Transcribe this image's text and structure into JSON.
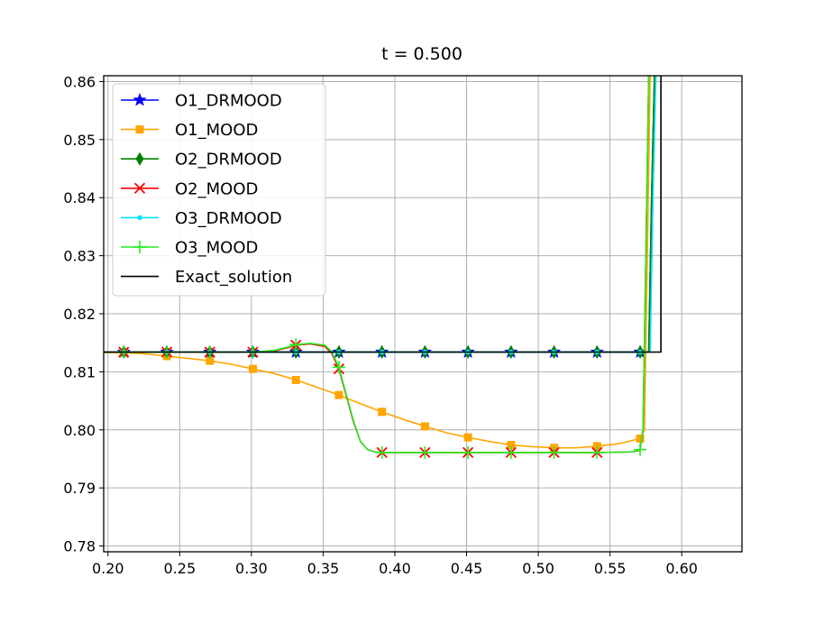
{
  "chart_data": {
    "type": "line",
    "title": "t = 0.500",
    "xlabel": "",
    "ylabel": "",
    "xlim": [
      0.197,
      0.642
    ],
    "ylim": [
      0.779,
      0.861
    ],
    "xticks": [
      0.2,
      0.25,
      0.3,
      0.35,
      0.4,
      0.45,
      0.5,
      0.55,
      0.6
    ],
    "xtick_labels": [
      "0.20",
      "0.25",
      "0.30",
      "0.35",
      "0.40",
      "0.45",
      "0.50",
      "0.55",
      "0.60"
    ],
    "yticks": [
      0.78,
      0.79,
      0.8,
      0.81,
      0.82,
      0.83,
      0.84,
      0.85,
      0.86
    ],
    "ytick_labels": [
      "0.78",
      "0.79",
      "0.80",
      "0.81",
      "0.82",
      "0.83",
      "0.84",
      "0.85",
      "0.86"
    ],
    "grid": true,
    "legend_position": "upper-left",
    "series": [
      {
        "name": "O1_DRMOOD",
        "color": "#0000ff",
        "marker": "star",
        "x": [
          0.197,
          0.211,
          0.241,
          0.271,
          0.301,
          0.331,
          0.361,
          0.391,
          0.421,
          0.451,
          0.481,
          0.511,
          0.541,
          0.571,
          0.577,
          0.579,
          0.581,
          0.583
        ],
        "y": [
          0.8134,
          0.8134,
          0.8134,
          0.8134,
          0.8134,
          0.8134,
          0.8134,
          0.8134,
          0.8134,
          0.8134,
          0.8134,
          0.8134,
          0.8134,
          0.8134,
          0.8134,
          0.84,
          0.861,
          0.861
        ],
        "markers_x": [
          0.211,
          0.241,
          0.271,
          0.301,
          0.331,
          0.361,
          0.391,
          0.421,
          0.451,
          0.481,
          0.511,
          0.541,
          0.571
        ],
        "markers_y": [
          0.8134,
          0.8134,
          0.8134,
          0.8134,
          0.8134,
          0.8134,
          0.8134,
          0.8134,
          0.8134,
          0.8134,
          0.8134,
          0.8134,
          0.8134
        ]
      },
      {
        "name": "O1_MOOD",
        "color": "#ffa500",
        "marker": "square",
        "x": [
          0.197,
          0.211,
          0.226,
          0.241,
          0.256,
          0.271,
          0.286,
          0.301,
          0.316,
          0.331,
          0.346,
          0.361,
          0.376,
          0.391,
          0.406,
          0.421,
          0.436,
          0.451,
          0.466,
          0.481,
          0.496,
          0.511,
          0.526,
          0.541,
          0.556,
          0.571,
          0.574,
          0.576,
          0.578
        ],
        "y": [
          0.8133,
          0.8133,
          0.8131,
          0.8127,
          0.8123,
          0.8119,
          0.8113,
          0.8105,
          0.8097,
          0.8086,
          0.8073,
          0.806,
          0.8045,
          0.8031,
          0.8018,
          0.8006,
          0.7995,
          0.7987,
          0.798,
          0.7974,
          0.7971,
          0.7969,
          0.7969,
          0.7972,
          0.7976,
          0.7985,
          0.8,
          0.83,
          0.861
        ],
        "markers_x": [
          0.211,
          0.241,
          0.271,
          0.301,
          0.331,
          0.361,
          0.391,
          0.421,
          0.451,
          0.481,
          0.511,
          0.541,
          0.571
        ],
        "markers_y": [
          0.8133,
          0.8127,
          0.8119,
          0.8105,
          0.8086,
          0.806,
          0.8031,
          0.8006,
          0.7987,
          0.7974,
          0.7969,
          0.7972,
          0.7985
        ]
      },
      {
        "name": "O2_DRMOOD",
        "color": "#008000",
        "marker": "thin_diamond",
        "x": [
          0.197,
          0.211,
          0.241,
          0.271,
          0.301,
          0.331,
          0.361,
          0.391,
          0.421,
          0.451,
          0.481,
          0.511,
          0.541,
          0.571,
          0.577,
          0.579,
          0.581
        ],
        "y": [
          0.8134,
          0.8134,
          0.8134,
          0.8134,
          0.8134,
          0.8134,
          0.8134,
          0.8134,
          0.8134,
          0.8134,
          0.8134,
          0.8134,
          0.8134,
          0.8134,
          0.8134,
          0.84,
          0.861
        ],
        "markers_x": [
          0.211,
          0.241,
          0.271,
          0.301,
          0.331,
          0.361,
          0.391,
          0.421,
          0.451,
          0.481,
          0.511,
          0.541,
          0.571
        ],
        "markers_y": [
          0.8134,
          0.8134,
          0.8134,
          0.8134,
          0.8134,
          0.8134,
          0.8134,
          0.8134,
          0.8134,
          0.8134,
          0.8134,
          0.8134,
          0.8134
        ]
      },
      {
        "name": "O2_MOOD",
        "color": "#ff0000",
        "marker": "x",
        "x": [
          0.197,
          0.211,
          0.241,
          0.271,
          0.301,
          0.316,
          0.326,
          0.331,
          0.341,
          0.351,
          0.356,
          0.361,
          0.366,
          0.371,
          0.376,
          0.381,
          0.386,
          0.391,
          0.421,
          0.451,
          0.481,
          0.511,
          0.541,
          0.566,
          0.571,
          0.573,
          0.575,
          0.577
        ],
        "y": [
          0.8134,
          0.8134,
          0.8134,
          0.8134,
          0.8134,
          0.8136,
          0.8142,
          0.8146,
          0.8148,
          0.8144,
          0.8132,
          0.8105,
          0.806,
          0.8015,
          0.798,
          0.7966,
          0.7962,
          0.7961,
          0.7961,
          0.7961,
          0.7961,
          0.7961,
          0.7961,
          0.7962,
          0.7965,
          0.8,
          0.83,
          0.861
        ],
        "markers_x": [
          0.211,
          0.241,
          0.271,
          0.301,
          0.331,
          0.361,
          0.391,
          0.421,
          0.451,
          0.481,
          0.511,
          0.541
        ],
        "markers_y": [
          0.8134,
          0.8134,
          0.8134,
          0.8134,
          0.8146,
          0.8105,
          0.7961,
          0.7961,
          0.7961,
          0.7961,
          0.7961,
          0.7961
        ]
      },
      {
        "name": "O3_DRMOOD",
        "color": "#00e5ff",
        "marker": "point",
        "x": [
          0.197,
          0.211,
          0.241,
          0.271,
          0.301,
          0.331,
          0.361,
          0.391,
          0.421,
          0.451,
          0.481,
          0.511,
          0.541,
          0.571,
          0.578,
          0.58,
          0.582
        ],
        "y": [
          0.8134,
          0.8134,
          0.8134,
          0.8134,
          0.8134,
          0.8134,
          0.8134,
          0.8134,
          0.8134,
          0.8134,
          0.8134,
          0.8134,
          0.8134,
          0.8134,
          0.8134,
          0.84,
          0.861
        ],
        "markers_x": [
          0.211,
          0.241,
          0.271,
          0.301,
          0.331,
          0.361,
          0.391,
          0.421,
          0.451,
          0.481,
          0.511,
          0.541,
          0.571
        ],
        "markers_y": [
          0.8134,
          0.8134,
          0.8134,
          0.8134,
          0.8134,
          0.8134,
          0.8134,
          0.8134,
          0.8134,
          0.8134,
          0.8134,
          0.8134,
          0.8134
        ]
      },
      {
        "name": "O3_MOOD",
        "color": "#22ee22",
        "marker": "plus",
        "x": [
          0.197,
          0.211,
          0.241,
          0.271,
          0.301,
          0.316,
          0.326,
          0.331,
          0.341,
          0.351,
          0.356,
          0.361,
          0.366,
          0.371,
          0.376,
          0.381,
          0.386,
          0.391,
          0.421,
          0.451,
          0.481,
          0.511,
          0.541,
          0.566,
          0.571,
          0.573,
          0.575,
          0.577
        ],
        "y": [
          0.8134,
          0.8134,
          0.8134,
          0.8134,
          0.8134,
          0.8137,
          0.8143,
          0.8147,
          0.8149,
          0.8146,
          0.8135,
          0.8108,
          0.8062,
          0.8017,
          0.798,
          0.7966,
          0.7962,
          0.7961,
          0.7961,
          0.7961,
          0.7961,
          0.7961,
          0.7961,
          0.7962,
          0.7966,
          0.8,
          0.83,
          0.861
        ],
        "markers_x": [
          0.211,
          0.241,
          0.271,
          0.301,
          0.331,
          0.361,
          0.391,
          0.421,
          0.451,
          0.481,
          0.511,
          0.541,
          0.571
        ],
        "markers_y": [
          0.8134,
          0.8134,
          0.8134,
          0.8134,
          0.8147,
          0.8108,
          0.7961,
          0.7961,
          0.7961,
          0.7961,
          0.7961,
          0.7961,
          0.7966
        ]
      },
      {
        "name": "Exact_solution",
        "color": "#000000",
        "marker": "none",
        "x": [
          0.197,
          0.5855,
          0.5855
        ],
        "y": [
          0.8134,
          0.8134,
          0.861
        ],
        "markers_x": [],
        "markers_y": []
      }
    ]
  }
}
